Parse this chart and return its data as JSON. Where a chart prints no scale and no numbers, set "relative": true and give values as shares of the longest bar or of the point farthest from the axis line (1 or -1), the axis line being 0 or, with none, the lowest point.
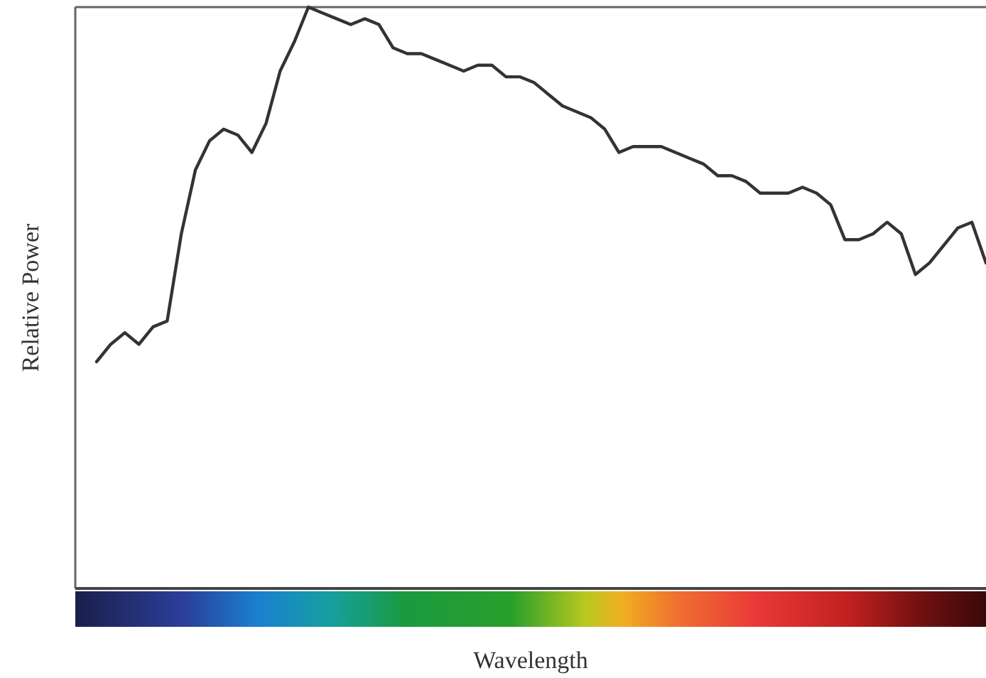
{
  "chart_data": {
    "type": "line",
    "relative": true,
    "xlabel": "Wavelength",
    "ylabel": "Relative Power",
    "grid": false,
    "marker": "none",
    "line_style": "solid",
    "categories": [
      null,
      null,
      null,
      null,
      null,
      null,
      null,
      null,
      null,
      null,
      null,
      null,
      null,
      null,
      null,
      null,
      null,
      null,
      null,
      null,
      null,
      null,
      null,
      null,
      null,
      null,
      null,
      null,
      null,
      null,
      null,
      null,
      null,
      null,
      null,
      null,
      null,
      null,
      null,
      null,
      null,
      null,
      null,
      null,
      null,
      null,
      null,
      null,
      null,
      null,
      null,
      null,
      null,
      null,
      null,
      null,
      null,
      null,
      null,
      null,
      null,
      null,
      null,
      null
    ],
    "series": [
      {
        "color": "#333333",
        "values": [
          0.39,
          0.42,
          0.44,
          0.42,
          0.45,
          0.46,
          0.61,
          0.72,
          0.77,
          0.79,
          0.78,
          0.75,
          0.8,
          0.89,
          0.94,
          1,
          0.99,
          0.98,
          0.97,
          0.98,
          0.97,
          0.93,
          0.92,
          0.92,
          0.91,
          0.9,
          0.89,
          0.9,
          0.9,
          0.88,
          0.88,
          0.87,
          0.85,
          0.83,
          0.82,
          0.81,
          0.79,
          0.75,
          0.76,
          0.76,
          0.76,
          0.75,
          0.74,
          0.73,
          0.71,
          0.71,
          0.7,
          0.68,
          0.68,
          0.68,
          0.69,
          0.68,
          0.66,
          0.6,
          0.6,
          0.61,
          0.63,
          0.61,
          0.54,
          0.56,
          0.59,
          0.62,
          0.63,
          0.56
        ]
      }
    ]
  }
}
